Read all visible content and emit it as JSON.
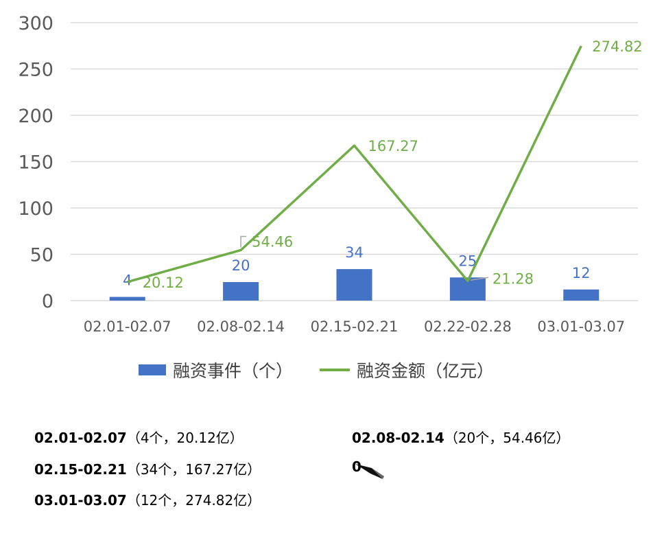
{
  "chart_data": {
    "type": "bar+line",
    "categories": [
      "02.01-02.07",
      "02.08-02.14",
      "02.15-02.21",
      "02.22-02.28",
      "03.01-03.07"
    ],
    "series": [
      {
        "name": "融资事件（个）",
        "type": "bar",
        "values": [
          4,
          20,
          34,
          25,
          12
        ],
        "color": "#4472C4"
      },
      {
        "name": "融资金额（亿元）",
        "type": "line",
        "values": [
          20.12,
          54.46,
          167.27,
          21.28,
          274.82
        ],
        "color": "#70AD47"
      }
    ],
    "bar_labels": [
      "4",
      "20",
      "34",
      "25",
      "12"
    ],
    "line_labels": [
      "20.12",
      "54.46",
      "167.27",
      "21.28",
      "274.82"
    ],
    "yticks": [
      "0",
      "50",
      "100",
      "150",
      "200",
      "250",
      "300"
    ],
    "ylim": [
      0,
      300
    ],
    "grid": true,
    "legend": "bottom"
  },
  "summary": [
    {
      "period": "02.01-02.07",
      "detail": "（4个，20.12亿）"
    },
    {
      "period": "02.08-02.14",
      "detail": "（20个，54.46亿）"
    },
    {
      "period": "02.15-02.21",
      "detail": "（34个，167.27亿）"
    },
    {
      "period": "0",
      "detail": ""
    },
    {
      "period": "03.01-03.07",
      "detail": "（12个，274.82亿）"
    }
  ]
}
